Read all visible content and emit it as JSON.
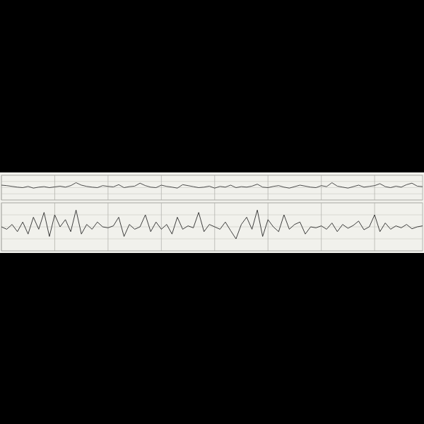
{
  "chart_data": [
    {
      "type": "line",
      "grid": true,
      "tick_labels": false,
      "xlim": [
        0,
        79
      ],
      "ylim": [
        0,
        100
      ],
      "xticks": [
        0,
        10,
        20,
        30,
        40,
        50,
        60,
        70
      ],
      "yticks": [
        0,
        25,
        50,
        75,
        100
      ],
      "x": [
        0,
        1,
        2,
        3,
        4,
        5,
        6,
        7,
        8,
        9,
        10,
        11,
        12,
        13,
        14,
        15,
        16,
        17,
        18,
        19,
        20,
        21,
        22,
        23,
        24,
        25,
        26,
        27,
        28,
        29,
        30,
        31,
        32,
        33,
        34,
        35,
        36,
        37,
        38,
        39,
        40,
        41,
        42,
        43,
        44,
        45,
        46,
        47,
        48,
        49,
        50,
        51,
        52,
        53,
        54,
        55,
        56,
        57,
        58,
        59,
        60,
        61,
        62,
        63,
        64,
        65,
        66,
        67,
        68,
        69,
        70,
        71,
        72,
        73,
        74,
        75,
        76,
        77,
        78,
        79
      ],
      "series": [
        {
          "color": "#3a3a3a",
          "values": [
            60,
            58,
            55,
            52,
            50,
            55,
            48,
            52,
            54,
            50,
            53,
            56,
            52,
            58,
            70,
            60,
            55,
            52,
            50,
            58,
            55,
            53,
            62,
            50,
            54,
            56,
            68,
            58,
            52,
            50,
            60,
            55,
            52,
            48,
            62,
            58,
            54,
            50,
            52,
            56,
            48,
            55,
            52,
            60,
            50,
            54,
            52,
            56,
            64,
            52,
            50,
            55,
            58,
            52,
            48,
            54,
            60,
            56,
            52,
            50,
            58,
            54,
            70,
            56,
            52,
            48,
            54,
            60,
            52,
            55,
            58,
            66,
            54,
            50,
            56,
            52,
            62,
            68,
            56,
            54
          ]
        }
      ]
    },
    {
      "type": "line",
      "grid": true,
      "tick_labels": false,
      "xlim": [
        0,
        79
      ],
      "ylim": [
        0,
        100
      ],
      "xticks": [
        0,
        10,
        20,
        30,
        40,
        50,
        60,
        70
      ],
      "yticks": [
        0,
        25,
        50,
        75,
        100
      ],
      "x": [
        0,
        1,
        2,
        3,
        4,
        5,
        6,
        7,
        8,
        9,
        10,
        11,
        12,
        13,
        14,
        15,
        16,
        17,
        18,
        19,
        20,
        21,
        22,
        23,
        24,
        25,
        26,
        27,
        28,
        29,
        30,
        31,
        32,
        33,
        34,
        35,
        36,
        37,
        38,
        39,
        40,
        41,
        42,
        43,
        44,
        45,
        46,
        47,
        48,
        49,
        50,
        51,
        52,
        53,
        54,
        55,
        56,
        57,
        58,
        59,
        60,
        61,
        62,
        63,
        64,
        65,
        66,
        67,
        68,
        69,
        70,
        71,
        72,
        73,
        74,
        75,
        76,
        77,
        78,
        79
      ],
      "series": [
        {
          "color": "#2a2a2a",
          "values": [
            50,
            45,
            55,
            40,
            60,
            35,
            70,
            45,
            80,
            30,
            75,
            50,
            65,
            40,
            85,
            35,
            55,
            45,
            60,
            50,
            48,
            52,
            70,
            30,
            55,
            45,
            50,
            75,
            40,
            60,
            45,
            55,
            35,
            70,
            45,
            52,
            48,
            80,
            40,
            55,
            50,
            45,
            60,
            42,
            25,
            55,
            70,
            45,
            85,
            30,
            65,
            50,
            40,
            75,
            45,
            55,
            60,
            35,
            50,
            48,
            52,
            45,
            58,
            40,
            55,
            47,
            53,
            62,
            44,
            50,
            75,
            40,
            58,
            45,
            52,
            48,
            55,
            46,
            50,
            52
          ]
        }
      ]
    }
  ]
}
